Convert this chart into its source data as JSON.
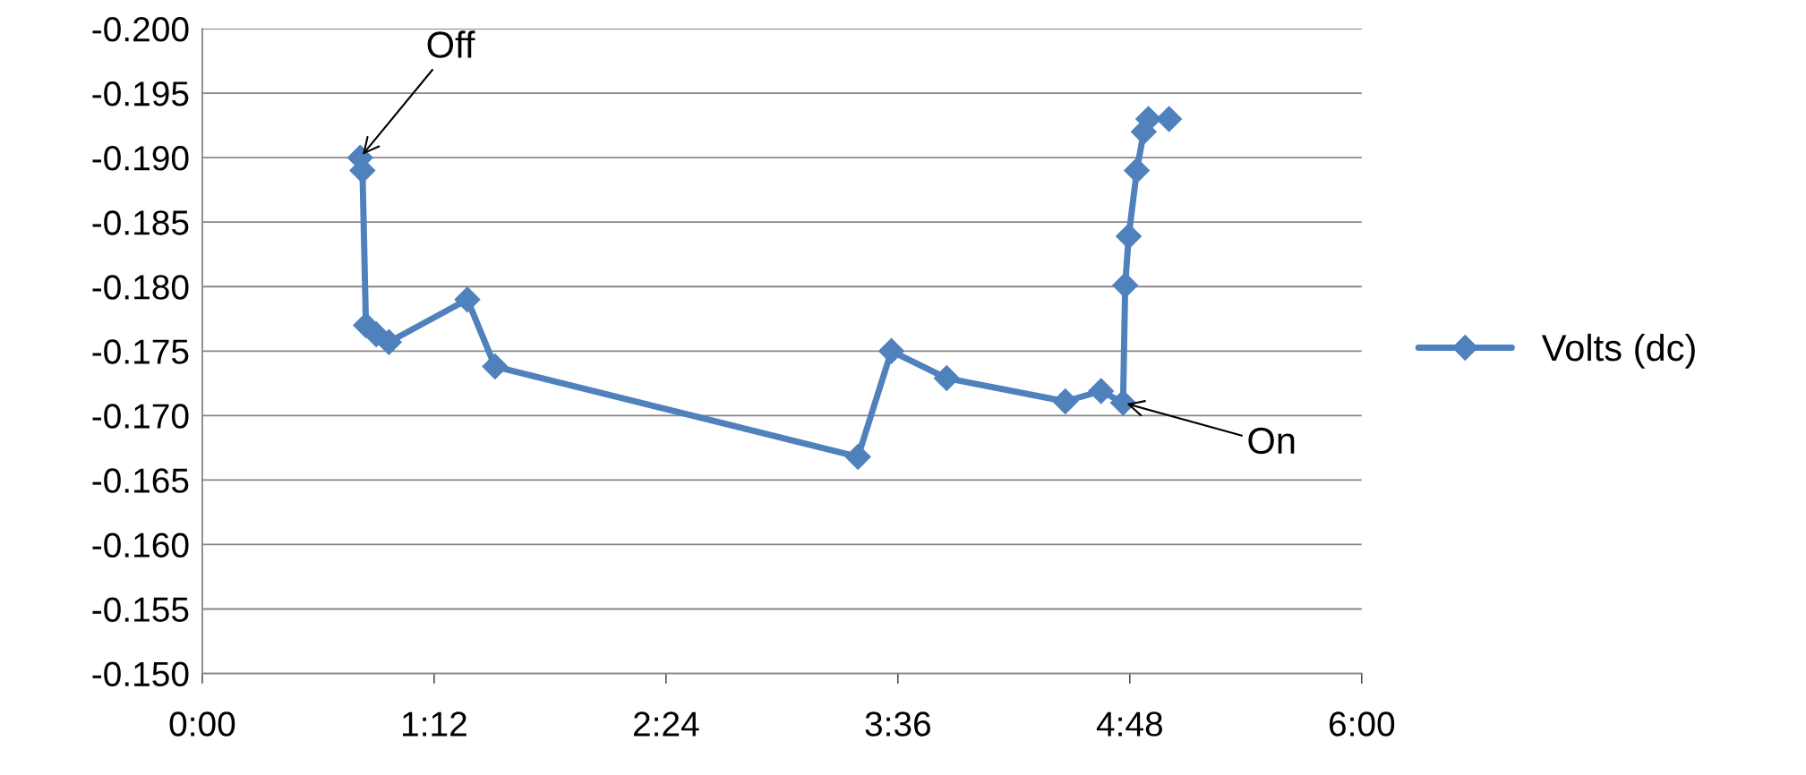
{
  "chart_data": {
    "type": "line",
    "x": [
      0.817,
      0.829,
      0.847,
      0.9,
      0.966,
      1.372,
      1.515,
      3.393,
      3.566,
      3.852,
      4.466,
      4.651,
      4.765,
      4.776,
      4.794,
      4.836,
      4.872,
      4.896,
      5.003
    ],
    "series": [
      {
        "name": "Volts (dc)",
        "color": "#4f81bd",
        "values": [
          -0.19,
          -0.189,
          -0.177,
          -0.1763,
          -0.1757,
          -0.179,
          -0.1738,
          -0.1668,
          -0.175,
          -0.1729,
          -0.1711,
          -0.1719,
          -0.171,
          -0.1801,
          -0.1839,
          -0.189,
          -0.192,
          -0.193,
          -0.193
        ]
      }
    ],
    "xlim": [
      0,
      6
    ],
    "xticks": [
      {
        "value": 0,
        "label": "0:00"
      },
      {
        "value": 1.2,
        "label": "1:12"
      },
      {
        "value": 2.4,
        "label": "2:24"
      },
      {
        "value": 3.6,
        "label": "3:36"
      },
      {
        "value": 4.8,
        "label": "4:48"
      },
      {
        "value": 6,
        "label": "6:00"
      }
    ],
    "ylim": [
      -0.15,
      -0.2
    ],
    "yticks": [
      {
        "value": -0.15,
        "label": "-0.150"
      },
      {
        "value": -0.155,
        "label": "-0.155"
      },
      {
        "value": -0.16,
        "label": "-0.160"
      },
      {
        "value": -0.165,
        "label": "-0.165"
      },
      {
        "value": -0.17,
        "label": "-0.170"
      },
      {
        "value": -0.175,
        "label": "-0.175"
      },
      {
        "value": -0.18,
        "label": "-0.180"
      },
      {
        "value": -0.185,
        "label": "-0.185"
      },
      {
        "value": -0.19,
        "label": "-0.190"
      },
      {
        "value": -0.195,
        "label": "-0.195"
      },
      {
        "value": -0.2,
        "label": "-0.200"
      }
    ],
    "annotations": [
      {
        "text": "Off",
        "x": 0.817,
        "y": -0.19
      },
      {
        "text": "On",
        "x": 4.765,
        "y": -0.171
      }
    ],
    "grid": "y",
    "legend": "right",
    "marker": "diamond",
    "line_style": "solid"
  }
}
